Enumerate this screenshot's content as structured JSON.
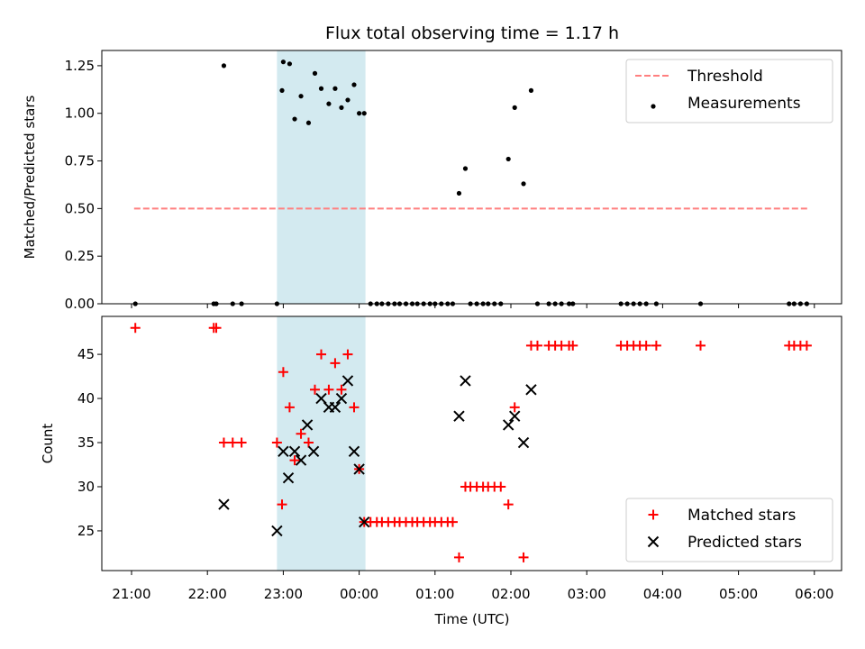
{
  "chart_data": {
    "title": "Flux total observing time = 1.17 h",
    "xlabel": "Time (UTC)",
    "x_tick_labels": [
      "21:00",
      "22:00",
      "23:00",
      "00:00",
      "01:00",
      "02:00",
      "03:00",
      "04:00",
      "05:00",
      "06:00"
    ],
    "x_ticks_hours": [
      0,
      1,
      2,
      3,
      4,
      5,
      6,
      7,
      8,
      9
    ],
    "x_unit_note_hours_after": "21:00",
    "highlight_span": {
      "start": "22:55",
      "end": "00:05",
      "color": "#add8e6"
    },
    "colors": {
      "threshold": "#ff7f7f",
      "measurements": "#000000",
      "matched": "#ff0000",
      "predicted": "#000000",
      "span": "#d3eaf0"
    },
    "panels": [
      {
        "type": "scatter",
        "ylabel": "Matched/Predicted stars",
        "ylim": [
          0,
          1.33
        ],
        "yticks": [
          0,
          0.25,
          0.5,
          0.75,
          1.0,
          1.25
        ],
        "ytick_labels": [
          "0.00",
          "0.25",
          "0.50",
          "0.75",
          "1.00",
          "1.25"
        ],
        "legend": {
          "placement": "top-right",
          "entries": [
            "Threshold",
            "Measurements"
          ]
        },
        "threshold": {
          "name": "Threshold",
          "y": 0.5,
          "x_start": "21:02",
          "x_end": "05:55",
          "style": "dashed"
        },
        "series": [
          {
            "name": "Measurements",
            "marker": "dot",
            "points": [
              [
                "21:03",
                0
              ],
              [
                "22:05",
                0
              ],
              [
                "22:07",
                0
              ],
              [
                "22:13",
                1.25
              ],
              [
                "22:20",
                0
              ],
              [
                "22:27",
                0
              ],
              [
                "22:55",
                0
              ],
              [
                "22:59",
                1.12
              ],
              [
                "23:00",
                1.27
              ],
              [
                "23:05",
                1.26
              ],
              [
                "23:09",
                0.97
              ],
              [
                "23:14",
                1.09
              ],
              [
                "23:20",
                0.95
              ],
              [
                "23:25",
                1.21
              ],
              [
                "23:30",
                1.13
              ],
              [
                "23:36",
                1.05
              ],
              [
                "23:41",
                1.13
              ],
              [
                "23:46",
                1.03
              ],
              [
                "23:51",
                1.07
              ],
              [
                "23:56",
                1.15
              ],
              [
                "00:00",
                1.0
              ],
              [
                "00:04",
                1.0
              ],
              [
                "00:09",
                0
              ],
              [
                "00:14",
                0
              ],
              [
                "00:18",
                0
              ],
              [
                "00:23",
                0
              ],
              [
                "00:28",
                0
              ],
              [
                "00:32",
                0
              ],
              [
                "00:37",
                0
              ],
              [
                "00:42",
                0
              ],
              [
                "00:46",
                0
              ],
              [
                "00:51",
                0
              ],
              [
                "00:56",
                0
              ],
              [
                "01:00",
                0
              ],
              [
                "01:05",
                0
              ],
              [
                "01:10",
                0
              ],
              [
                "01:14",
                0
              ],
              [
                "01:19",
                0.58
              ],
              [
                "01:24",
                0.71
              ],
              [
                "01:28",
                0
              ],
              [
                "01:33",
                0
              ],
              [
                "01:38",
                0
              ],
              [
                "01:42",
                0
              ],
              [
                "01:47",
                0
              ],
              [
                "01:52",
                0
              ],
              [
                "01:58",
                0.76
              ],
              [
                "02:03",
                1.03
              ],
              [
                "02:10",
                0.63
              ],
              [
                "02:16",
                1.12
              ],
              [
                "02:21",
                0
              ],
              [
                "02:30",
                0
              ],
              [
                "02:35",
                0
              ],
              [
                "02:40",
                0
              ],
              [
                "02:46",
                0
              ],
              [
                "02:49",
                0
              ],
              [
                "03:27",
                0
              ],
              [
                "03:32",
                0
              ],
              [
                "03:37",
                0
              ],
              [
                "03:42",
                0
              ],
              [
                "03:47",
                0
              ],
              [
                "03:55",
                0
              ],
              [
                "04:30",
                0
              ],
              [
                "05:40",
                0
              ],
              [
                "05:44",
                0
              ],
              [
                "05:49",
                0
              ],
              [
                "05:54",
                0
              ]
            ]
          }
        ]
      },
      {
        "type": "scatter",
        "ylabel": "Count",
        "ylim": [
          20.5,
          49.3
        ],
        "yticks": [
          25,
          30,
          35,
          40,
          45
        ],
        "ytick_labels": [
          "25",
          "30",
          "35",
          "40",
          "45"
        ],
        "legend": {
          "placement": "bottom-right",
          "entries": [
            "Matched stars",
            "Predicted stars"
          ]
        },
        "series": [
          {
            "name": "Matched stars",
            "marker": "plus",
            "points": [
              [
                "21:03",
                48
              ],
              [
                "22:05",
                48
              ],
              [
                "22:07",
                48
              ],
              [
                "22:13",
                35
              ],
              [
                "22:20",
                35
              ],
              [
                "22:27",
                35
              ],
              [
                "22:55",
                35
              ],
              [
                "22:59",
                28
              ],
              [
                "23:00",
                43
              ],
              [
                "23:05",
                39
              ],
              [
                "23:09",
                33
              ],
              [
                "23:14",
                36
              ],
              [
                "23:20",
                35
              ],
              [
                "23:25",
                41
              ],
              [
                "23:30",
                45
              ],
              [
                "23:36",
                41
              ],
              [
                "23:41",
                44
              ],
              [
                "23:46",
                41
              ],
              [
                "23:51",
                45
              ],
              [
                "23:56",
                39
              ],
              [
                "00:00",
                32
              ],
              [
                "00:04",
                26
              ],
              [
                "00:09",
                26
              ],
              [
                "00:14",
                26
              ],
              [
                "00:18",
                26
              ],
              [
                "00:23",
                26
              ],
              [
                "00:28",
                26
              ],
              [
                "00:32",
                26
              ],
              [
                "00:37",
                26
              ],
              [
                "00:42",
                26
              ],
              [
                "00:46",
                26
              ],
              [
                "00:51",
                26
              ],
              [
                "00:56",
                26
              ],
              [
                "01:00",
                26
              ],
              [
                "01:05",
                26
              ],
              [
                "01:10",
                26
              ],
              [
                "01:14",
                26
              ],
              [
                "01:19",
                22
              ],
              [
                "01:24",
                30
              ],
              [
                "01:28",
                30
              ],
              [
                "01:33",
                30
              ],
              [
                "01:38",
                30
              ],
              [
                "01:42",
                30
              ],
              [
                "01:47",
                30
              ],
              [
                "01:52",
                30
              ],
              [
                "01:58",
                28
              ],
              [
                "02:03",
                39
              ],
              [
                "02:10",
                22
              ],
              [
                "02:16",
                46
              ],
              [
                "02:21",
                46
              ],
              [
                "02:30",
                46
              ],
              [
                "02:35",
                46
              ],
              [
                "02:40",
                46
              ],
              [
                "02:46",
                46
              ],
              [
                "02:49",
                46
              ],
              [
                "03:27",
                46
              ],
              [
                "03:32",
                46
              ],
              [
                "03:37",
                46
              ],
              [
                "03:42",
                46
              ],
              [
                "03:47",
                46
              ],
              [
                "03:55",
                46
              ],
              [
                "04:30",
                46
              ],
              [
                "05:40",
                46
              ],
              [
                "05:44",
                46
              ],
              [
                "05:49",
                46
              ],
              [
                "05:54",
                46
              ]
            ]
          },
          {
            "name": "Predicted stars",
            "marker": "x",
            "points": [
              [
                "22:13",
                28
              ],
              [
                "22:55",
                25
              ],
              [
                "23:00",
                34
              ],
              [
                "23:04",
                31
              ],
              [
                "23:09",
                34
              ],
              [
                "23:14",
                33
              ],
              [
                "23:19",
                37
              ],
              [
                "23:24",
                34
              ],
              [
                "23:30",
                40
              ],
              [
                "23:36",
                39
              ],
              [
                "23:41",
                39
              ],
              [
                "23:46",
                40
              ],
              [
                "23:51",
                42
              ],
              [
                "23:56",
                34
              ],
              [
                "00:00",
                32
              ],
              [
                "00:04",
                26
              ],
              [
                "01:19",
                38
              ],
              [
                "01:24",
                42
              ],
              [
                "01:58",
                37
              ],
              [
                "02:03",
                38
              ],
              [
                "02:10",
                35
              ],
              [
                "02:16",
                41
              ]
            ]
          }
        ]
      }
    ]
  }
}
